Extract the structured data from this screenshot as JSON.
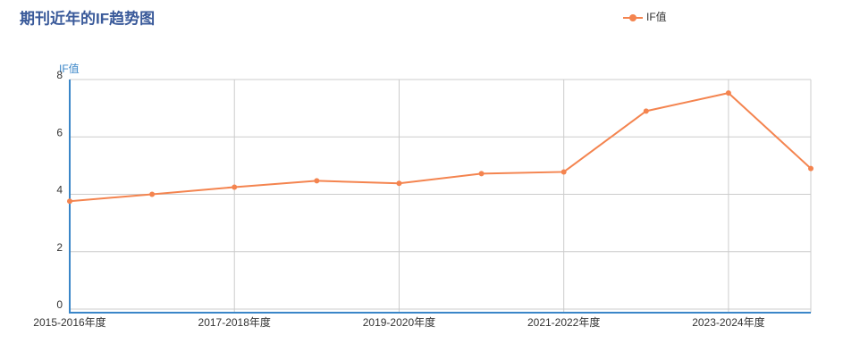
{
  "chart_data": {
    "type": "line",
    "title": "期刊近年的IF趋势图",
    "y_label": "IF值",
    "categories": [
      "2015-2016年度",
      null,
      "2017-2018年度",
      null,
      "2019-2020年度",
      null,
      "2021-2022年度",
      null,
      "2023-2024年度",
      null
    ],
    "series": [
      {
        "name": "IF值",
        "color": "#f4844f",
        "values": [
          3.76,
          4.0,
          4.25,
          4.47,
          4.38,
          4.72,
          4.78,
          6.9,
          7.53,
          4.9
        ]
      }
    ],
    "ylim": [
      0,
      8
    ],
    "yticks": [
      0,
      2,
      4,
      6,
      8
    ],
    "grid": true,
    "legend": "top-right"
  }
}
